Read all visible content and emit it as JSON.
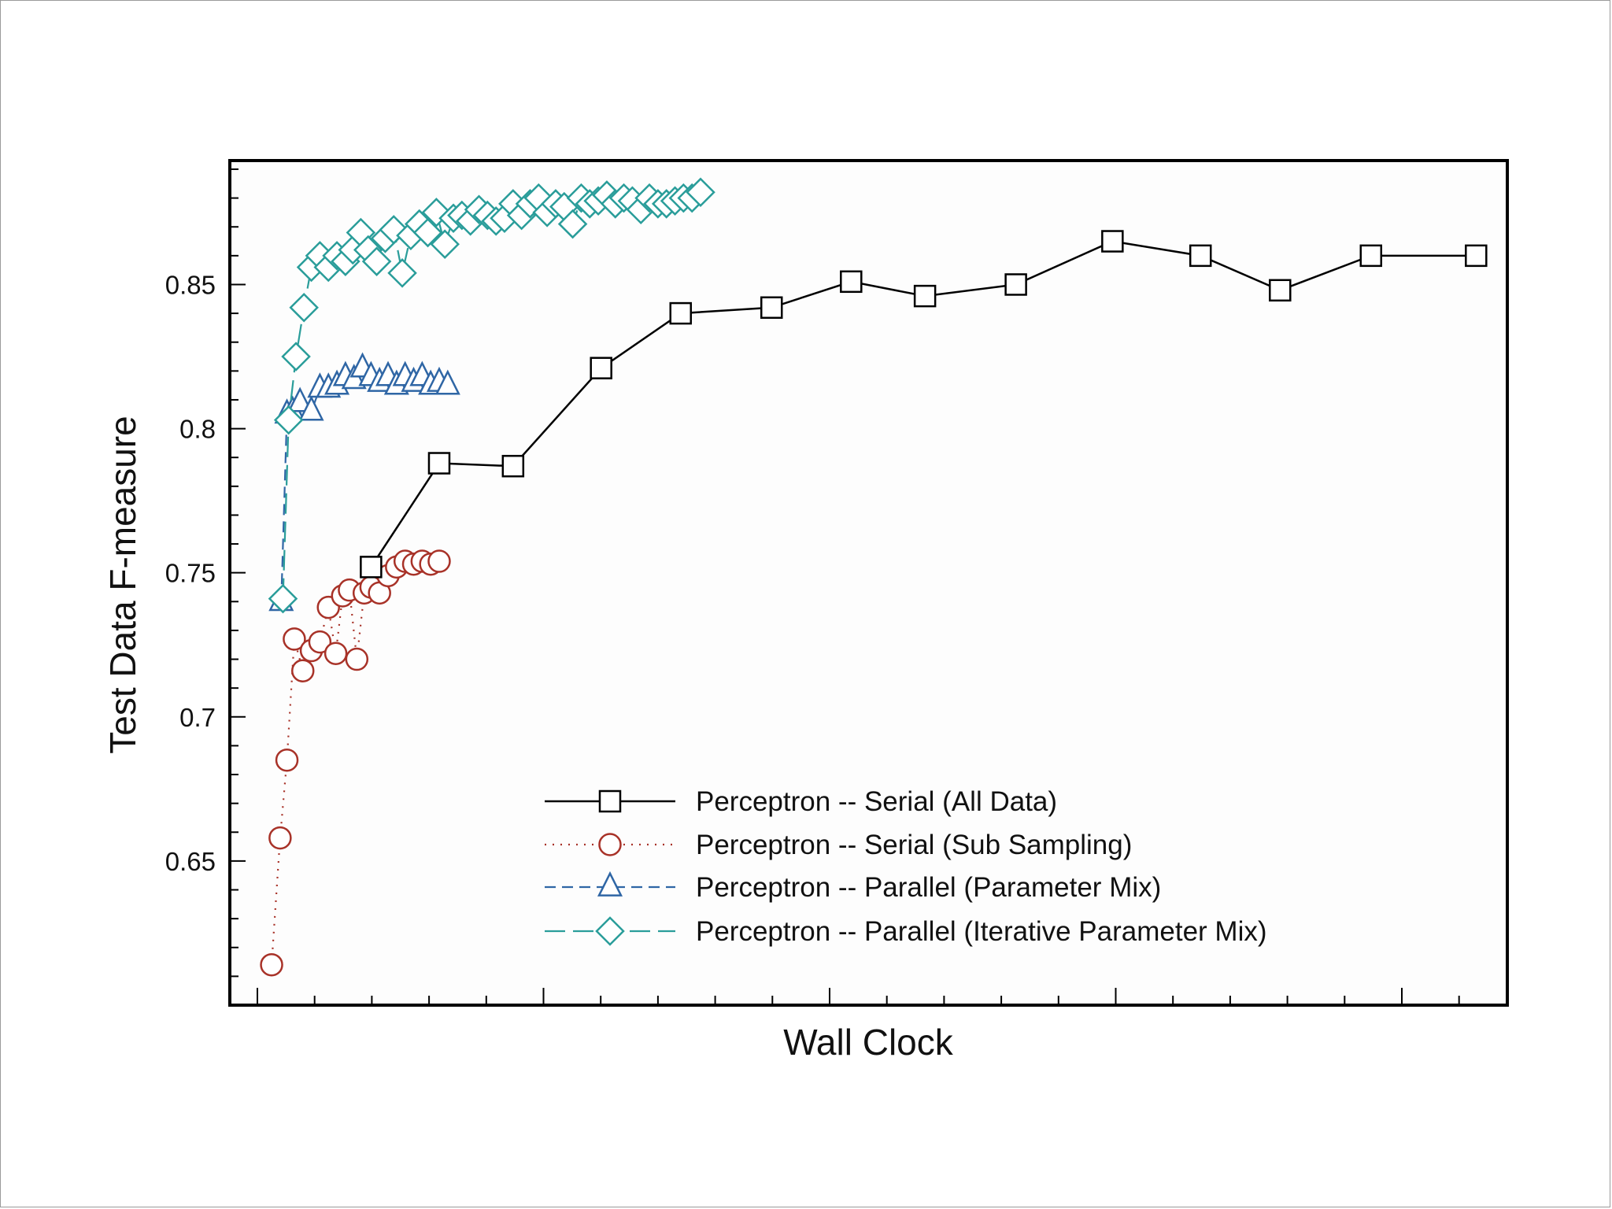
{
  "chart_data": {
    "type": "line",
    "title": "",
    "xlabel": "Wall Clock",
    "ylabel": "Test Data F-measure",
    "x_tick_labels": false,
    "xlim": [
      0,
      22
    ],
    "ylim": [
      0.6,
      0.893
    ],
    "y_ticks": [
      "0.65",
      "0.7",
      "0.75",
      "0.8",
      "0.85"
    ],
    "grid": false,
    "legend_position": "bottom-right",
    "series": [
      {
        "name": "Perceptron -- Serial (All Data)",
        "color": "#000000",
        "marker": "square",
        "line_style": "solid",
        "x": [
          2.0,
          3.2,
          4.5,
          6.05,
          7.45,
          9.05,
          10.45,
          11.75,
          13.35,
          15.05,
          16.6,
          18.0,
          19.6,
          21.45
        ],
        "y": [
          0.752,
          0.788,
          0.787,
          0.821,
          0.84,
          0.842,
          0.851,
          0.846,
          0.85,
          0.865,
          0.86,
          0.848,
          0.86,
          0.86
        ]
      },
      {
        "name": "Perceptron -- Serial (Sub Sampling)",
        "color": "#a83228",
        "marker": "circle",
        "line_style": "dotted",
        "x": [
          0.25,
          0.4,
          0.52,
          0.65,
          0.8,
          0.95,
          1.1,
          1.25,
          1.38,
          1.5,
          1.62,
          1.75,
          1.88,
          2.0,
          2.15,
          2.3,
          2.45,
          2.6,
          2.75,
          2.9,
          3.05,
          3.2
        ],
        "y": [
          0.614,
          0.658,
          0.685,
          0.727,
          0.716,
          0.723,
          0.726,
          0.738,
          0.722,
          0.742,
          0.744,
          0.72,
          0.743,
          0.745,
          0.743,
          0.749,
          0.752,
          0.754,
          0.753,
          0.754,
          0.753,
          0.754
        ]
      },
      {
        "name": "Perceptron -- Parallel (Parameter Mix)",
        "color": "#2f66a5",
        "marker": "triangle",
        "line_style": "dashed",
        "x": [
          0.42,
          0.52,
          0.62,
          0.75,
          0.95,
          1.1,
          1.25,
          1.4,
          1.55,
          1.7,
          1.85,
          2.0,
          2.15,
          2.3,
          2.45,
          2.6,
          2.75,
          2.9,
          3.05,
          3.2,
          3.35
        ],
        "y": [
          0.74,
          0.805,
          0.806,
          0.809,
          0.806,
          0.814,
          0.814,
          0.815,
          0.818,
          0.817,
          0.821,
          0.818,
          0.816,
          0.818,
          0.815,
          0.818,
          0.816,
          0.818,
          0.815,
          0.816,
          0.815
        ]
      },
      {
        "name": "Perceptron -- Parallel (Iterative Parameter Mix)",
        "color": "#2a9d9a",
        "marker": "diamond",
        "line_style": "long-dashed",
        "x": [
          0.45,
          0.55,
          0.68,
          0.82,
          0.95,
          1.1,
          1.25,
          1.4,
          1.55,
          1.68,
          1.82,
          1.95,
          2.1,
          2.25,
          2.4,
          2.55,
          2.7,
          2.85,
          3.0,
          3.15,
          3.3,
          3.45,
          3.6,
          3.75,
          3.9,
          4.05,
          4.2,
          4.35,
          4.5,
          4.65,
          4.8,
          4.95,
          5.1,
          5.25,
          5.4,
          5.55,
          5.7,
          5.85,
          6.0,
          6.15,
          6.3,
          6.45,
          6.6,
          6.75,
          6.9,
          7.05,
          7.2,
          7.35,
          7.5,
          7.65,
          7.8
        ],
        "y": [
          0.741,
          0.803,
          0.825,
          0.842,
          0.856,
          0.86,
          0.856,
          0.86,
          0.858,
          0.862,
          0.868,
          0.862,
          0.858,
          0.866,
          0.869,
          0.854,
          0.867,
          0.871,
          0.868,
          0.875,
          0.864,
          0.873,
          0.874,
          0.872,
          0.876,
          0.874,
          0.872,
          0.873,
          0.878,
          0.874,
          0.878,
          0.88,
          0.875,
          0.878,
          0.877,
          0.871,
          0.88,
          0.878,
          0.879,
          0.881,
          0.878,
          0.88,
          0.879,
          0.876,
          0.88,
          0.878,
          0.878,
          0.879,
          0.88,
          0.88,
          0.882
        ]
      }
    ]
  }
}
